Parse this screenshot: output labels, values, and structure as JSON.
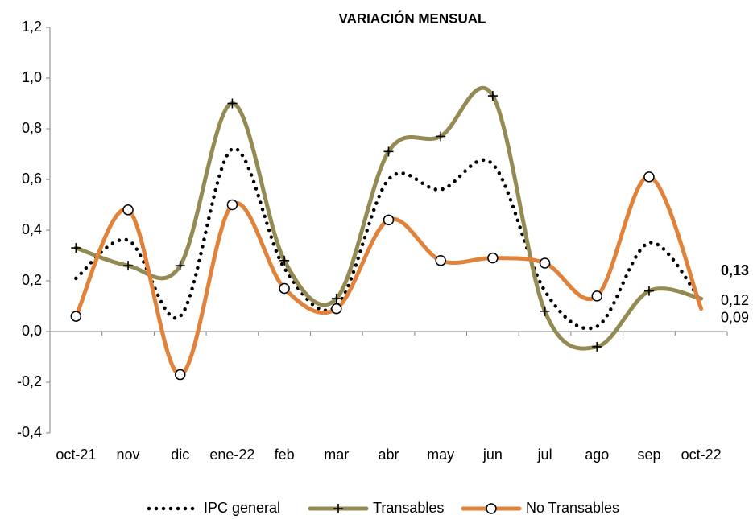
{
  "chart_data": {
    "type": "line",
    "title": "VARIACIÓN MENSUAL",
    "categories": [
      "oct-21",
      "nov",
      "dic",
      "ene-22",
      "feb",
      "mar",
      "abr",
      "may",
      "jun",
      "jul",
      "ago",
      "sep",
      "oct-22"
    ],
    "series": [
      {
        "name": "IPC general",
        "color": "#000000",
        "dash": "dotted",
        "marker": null,
        "values": [
          0.21,
          0.36,
          0.06,
          0.72,
          0.25,
          0.1,
          0.6,
          0.56,
          0.66,
          0.16,
          0.02,
          0.35,
          0.12
        ],
        "value_labels": [
          null,
          null,
          null,
          null,
          null,
          null,
          null,
          null,
          null,
          null,
          null,
          null,
          "0,12"
        ]
      },
      {
        "name": "Transables",
        "color": "#948a54",
        "dash": "solid",
        "marker": "plus",
        "label_color": "#7a7a1e",
        "values": [
          0.33,
          0.26,
          0.26,
          0.9,
          0.28,
          0.13,
          0.71,
          0.77,
          0.93,
          0.08,
          -0.06,
          0.16,
          0.13
        ],
        "value_labels": [
          null,
          null,
          null,
          null,
          null,
          null,
          null,
          null,
          null,
          null,
          null,
          null,
          "0,13"
        ]
      },
      {
        "name": "No Transables",
        "color": "#e0823a",
        "dash": "solid",
        "marker": "circle",
        "values": [
          0.06,
          0.48,
          -0.17,
          0.5,
          0.17,
          0.09,
          0.44,
          0.28,
          0.29,
          0.27,
          0.14,
          0.61,
          0.09
        ],
        "value_labels": [
          null,
          null,
          null,
          null,
          null,
          null,
          null,
          null,
          null,
          null,
          null,
          null,
          "0,09"
        ]
      }
    ],
    "ylim": [
      -0.4,
      1.2
    ],
    "yticks": [
      {
        "value": -0.4,
        "label": "-0,4"
      },
      {
        "value": -0.2,
        "label": "-0,2"
      },
      {
        "value": 0,
        "label": "0,0"
      },
      {
        "value": 0.2,
        "label": "0,2"
      },
      {
        "value": 0.4,
        "label": "0,4"
      },
      {
        "value": 0.6,
        "label": "0,6"
      },
      {
        "value": 0.8,
        "label": "0,8"
      },
      {
        "value": 1.0,
        "label": "1,0"
      },
      {
        "value": 1.2,
        "label": "1,2"
      }
    ],
    "grid": false,
    "legend": "bottom"
  }
}
